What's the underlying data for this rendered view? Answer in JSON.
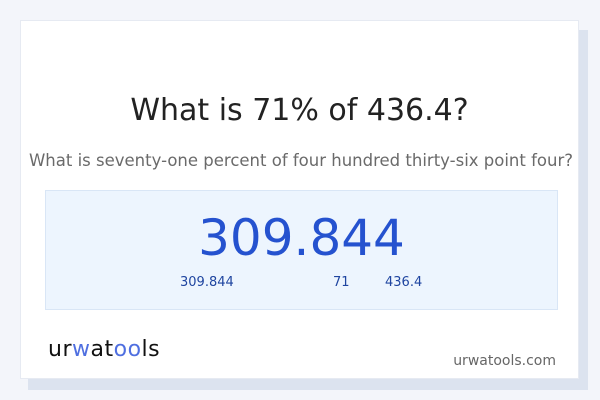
{
  "title": "What is 71% of 436.4?",
  "subtitle": "What is seventy-one percent of four hundred thirty-six point four?",
  "result": {
    "value": "309.844",
    "breakdown": {
      "result": "309.844",
      "percent": "71",
      "base": "436.4"
    }
  },
  "logo": {
    "text": "urwatools",
    "parts": [
      "ur",
      "w",
      "at",
      "oo",
      "ls"
    ]
  },
  "site": "urwatools.com",
  "colors": {
    "accent": "#2552cf",
    "result_bg": "#edf5fe",
    "page_bg": "#f3f5fa"
  }
}
